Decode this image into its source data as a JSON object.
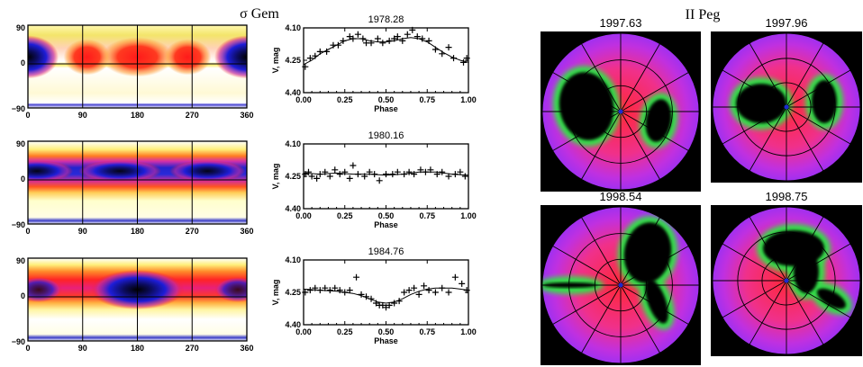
{
  "left": {
    "title": "σ Gem",
    "maps": [
      {
        "x_ticks": [
          "0",
          "90",
          "180",
          "270",
          "360"
        ],
        "y_ticks": [
          "90",
          "0",
          "−90"
        ]
      },
      {
        "x_ticks": [
          "0",
          "90",
          "180",
          "270",
          "360"
        ],
        "y_ticks": [
          "90",
          "0",
          "−90"
        ]
      },
      {
        "x_ticks": [
          "0",
          "90",
          "180",
          "270",
          "360"
        ],
        "y_ticks": [
          "90",
          "0",
          "−90"
        ]
      }
    ]
  },
  "chart_data": [
    {
      "type": "scatter",
      "title": "1978.28",
      "xlabel": "Phase",
      "ylabel": "V, mag",
      "xlim": [
        0,
        1
      ],
      "ylim": [
        4.4,
        4.1
      ],
      "x_ticks": [
        "0.00",
        "0.25",
        "0.50",
        "0.75",
        "1.00"
      ],
      "y_ticks": [
        "4.10",
        "4.25",
        "4.40"
      ],
      "points": [
        [
          0.01,
          4.28
        ],
        [
          0.04,
          4.24
        ],
        [
          0.07,
          4.23
        ],
        [
          0.1,
          4.21
        ],
        [
          0.14,
          4.21
        ],
        [
          0.18,
          4.18
        ],
        [
          0.21,
          4.18
        ],
        [
          0.24,
          4.16
        ],
        [
          0.28,
          4.14
        ],
        [
          0.3,
          4.15
        ],
        [
          0.33,
          4.13
        ],
        [
          0.36,
          4.15
        ],
        [
          0.38,
          4.17
        ],
        [
          0.41,
          4.17
        ],
        [
          0.45,
          4.15
        ],
        [
          0.48,
          4.17
        ],
        [
          0.52,
          4.16
        ],
        [
          0.55,
          4.15
        ],
        [
          0.57,
          4.14
        ],
        [
          0.6,
          4.16
        ],
        [
          0.63,
          4.13
        ],
        [
          0.66,
          4.11
        ],
        [
          0.69,
          4.14
        ],
        [
          0.72,
          4.15
        ],
        [
          0.76,
          4.16
        ],
        [
          0.8,
          4.2
        ],
        [
          0.84,
          4.22
        ],
        [
          0.88,
          4.19
        ],
        [
          0.91,
          4.24
        ],
        [
          0.97,
          4.26
        ],
        [
          0.99,
          4.24
        ]
      ],
      "fit": [
        [
          0.0,
          4.27
        ],
        [
          0.05,
          4.25
        ],
        [
          0.1,
          4.22
        ],
        [
          0.15,
          4.2
        ],
        [
          0.2,
          4.18
        ],
        [
          0.25,
          4.16
        ],
        [
          0.3,
          4.15
        ],
        [
          0.35,
          4.15
        ],
        [
          0.4,
          4.16
        ],
        [
          0.45,
          4.165
        ],
        [
          0.5,
          4.165
        ],
        [
          0.55,
          4.16
        ],
        [
          0.6,
          4.15
        ],
        [
          0.65,
          4.145
        ],
        [
          0.7,
          4.15
        ],
        [
          0.75,
          4.165
        ],
        [
          0.8,
          4.19
        ],
        [
          0.85,
          4.215
        ],
        [
          0.9,
          4.235
        ],
        [
          0.95,
          4.25
        ],
        [
          1.0,
          4.26
        ]
      ]
    },
    {
      "type": "scatter",
      "title": "1980.16",
      "xlabel": "Phase",
      "ylabel": "V, mag",
      "xlim": [
        0,
        1
      ],
      "ylim": [
        4.4,
        4.1
      ],
      "x_ticks": [
        "0.00",
        "0.25",
        "0.50",
        "0.75",
        "1.00"
      ],
      "y_ticks": [
        "4.10",
        "4.25",
        "4.40"
      ],
      "points": [
        [
          0.01,
          4.24
        ],
        [
          0.03,
          4.23
        ],
        [
          0.05,
          4.25
        ],
        [
          0.08,
          4.26
        ],
        [
          0.1,
          4.24
        ],
        [
          0.13,
          4.23
        ],
        [
          0.16,
          4.25
        ],
        [
          0.19,
          4.22
        ],
        [
          0.22,
          4.24
        ],
        [
          0.25,
          4.23
        ],
        [
          0.28,
          4.26
        ],
        [
          0.3,
          4.2
        ],
        [
          0.33,
          4.24
        ],
        [
          0.37,
          4.25
        ],
        [
          0.4,
          4.23
        ],
        [
          0.43,
          4.24
        ],
        [
          0.46,
          4.27
        ],
        [
          0.5,
          4.24
        ],
        [
          0.54,
          4.24
        ],
        [
          0.57,
          4.23
        ],
        [
          0.61,
          4.24
        ],
        [
          0.64,
          4.23
        ],
        [
          0.67,
          4.24
        ],
        [
          0.71,
          4.22
        ],
        [
          0.74,
          4.23
        ],
        [
          0.77,
          4.22
        ],
        [
          0.81,
          4.24
        ],
        [
          0.84,
          4.23
        ],
        [
          0.88,
          4.25
        ],
        [
          0.92,
          4.24
        ],
        [
          0.95,
          4.23
        ],
        [
          0.98,
          4.25
        ]
      ],
      "fit": [
        [
          0.0,
          4.235
        ],
        [
          0.1,
          4.24
        ],
        [
          0.2,
          4.235
        ],
        [
          0.3,
          4.24
        ],
        [
          0.4,
          4.24
        ],
        [
          0.5,
          4.245
        ],
        [
          0.6,
          4.24
        ],
        [
          0.7,
          4.23
        ],
        [
          0.8,
          4.23
        ],
        [
          0.9,
          4.24
        ],
        [
          1.0,
          4.245
        ]
      ]
    },
    {
      "type": "scatter",
      "title": "1984.76",
      "xlabel": "Phase",
      "ylabel": "V, mag",
      "xlim": [
        0,
        1
      ],
      "ylim": [
        4.4,
        4.1
      ],
      "x_ticks": [
        "0.00",
        "0.25",
        "0.50",
        "0.75",
        "1.00"
      ],
      "y_ticks": [
        "4.10",
        "4.25",
        "4.40"
      ],
      "points": [
        [
          0.01,
          4.25
        ],
        [
          0.04,
          4.24
        ],
        [
          0.07,
          4.23
        ],
        [
          0.1,
          4.24
        ],
        [
          0.13,
          4.23
        ],
        [
          0.16,
          4.24
        ],
        [
          0.19,
          4.23
        ],
        [
          0.22,
          4.24
        ],
        [
          0.25,
          4.25
        ],
        [
          0.28,
          4.24
        ],
        [
          0.32,
          4.18
        ],
        [
          0.35,
          4.26
        ],
        [
          0.38,
          4.27
        ],
        [
          0.41,
          4.28
        ],
        [
          0.44,
          4.3
        ],
        [
          0.46,
          4.31
        ],
        [
          0.48,
          4.31
        ],
        [
          0.5,
          4.32
        ],
        [
          0.52,
          4.31
        ],
        [
          0.55,
          4.3
        ],
        [
          0.58,
          4.29
        ],
        [
          0.61,
          4.25
        ],
        [
          0.64,
          4.24
        ],
        [
          0.67,
          4.23
        ],
        [
          0.7,
          4.26
        ],
        [
          0.73,
          4.22
        ],
        [
          0.76,
          4.24
        ],
        [
          0.8,
          4.25
        ],
        [
          0.84,
          4.23
        ],
        [
          0.88,
          4.25
        ],
        [
          0.92,
          4.18
        ],
        [
          0.96,
          4.21
        ],
        [
          0.99,
          4.24
        ]
      ],
      "fit": [
        [
          0.0,
          4.235
        ],
        [
          0.1,
          4.24
        ],
        [
          0.2,
          4.245
        ],
        [
          0.25,
          4.25
        ],
        [
          0.3,
          4.255
        ],
        [
          0.35,
          4.265
        ],
        [
          0.4,
          4.28
        ],
        [
          0.45,
          4.295
        ],
        [
          0.5,
          4.3
        ],
        [
          0.55,
          4.295
        ],
        [
          0.6,
          4.28
        ],
        [
          0.65,
          4.26
        ],
        [
          0.7,
          4.245
        ],
        [
          0.75,
          4.235
        ],
        [
          0.8,
          4.23
        ],
        [
          0.85,
          4.23
        ],
        [
          0.9,
          4.23
        ],
        [
          0.95,
          4.235
        ],
        [
          1.0,
          4.24
        ]
      ]
    }
  ],
  "right": {
    "title": "II Peg",
    "maps": [
      {
        "epoch": "1997.63"
      },
      {
        "epoch": "1997.96"
      },
      {
        "epoch": "1998.54"
      },
      {
        "epoch": "1998.75"
      }
    ]
  },
  "colors": {
    "axis": "#000000",
    "polar_bg": "#000000",
    "polar_base": "#e0409a",
    "polar_red": "#ff2a2a",
    "polar_violet": "#b12ff0",
    "spot_green": "#32e04a",
    "spot_dark": "#000000"
  }
}
